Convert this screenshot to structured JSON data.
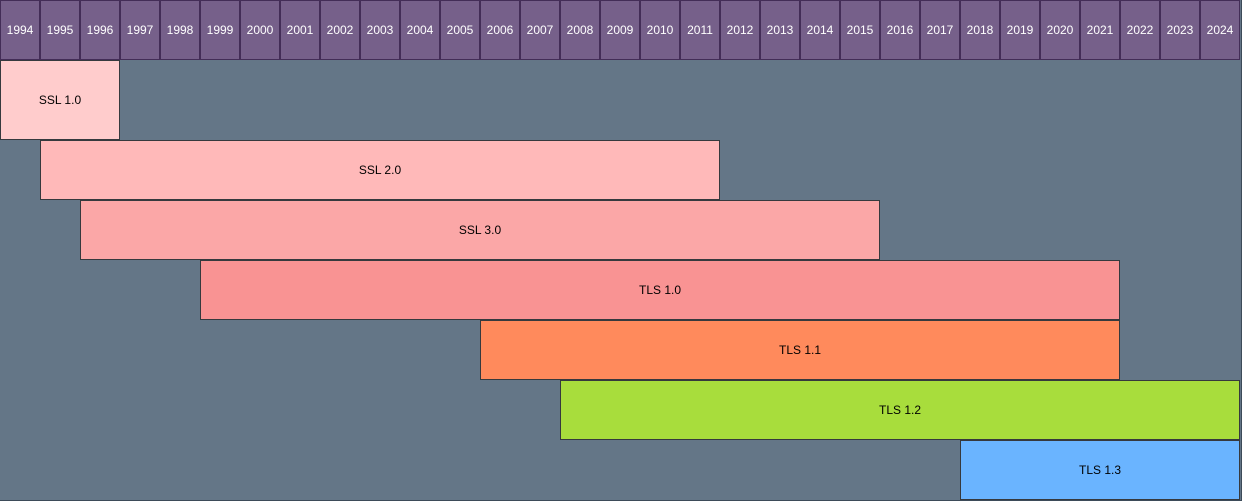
{
  "years": [
    "1994",
    "1995",
    "1996",
    "1997",
    "1998",
    "1999",
    "2000",
    "2001",
    "2002",
    "2003",
    "2004",
    "2005",
    "2006",
    "2007",
    "2008",
    "2009",
    "2010",
    "2011",
    "2012",
    "2013",
    "2014",
    "2015",
    "2016",
    "2017",
    "2018",
    "2019",
    "2020",
    "2021",
    "2022",
    "2023",
    "2024"
  ],
  "protocols": [
    {
      "name": "SSL 1.0",
      "start": 1994,
      "end": 1996,
      "color": "#ffcccc"
    },
    {
      "name": "SSL 2.0",
      "start": 1995,
      "end": 2011,
      "color": "#ffb9b9"
    },
    {
      "name": "SSL 3.0",
      "start": 1996,
      "end": 2015,
      "color": "#fba7a7"
    },
    {
      "name": "TLS 1.0",
      "start": 1999,
      "end": 2021,
      "color": "#f99393"
    },
    {
      "name": "TLS 1.1",
      "start": 2006,
      "end": 2021,
      "color": "#ff8a5c"
    },
    {
      "name": "TLS 1.2",
      "start": 2008,
      "end": 2024,
      "color": "#a8dd3c"
    },
    {
      "name": "TLS 1.3",
      "start": 2018,
      "end": 2024,
      "color": "#6ab4ff"
    }
  ],
  "colors": {
    "background": "#647687",
    "header": "#76608a",
    "header_border": "#432d57",
    "bar_border": "#36393d"
  }
}
